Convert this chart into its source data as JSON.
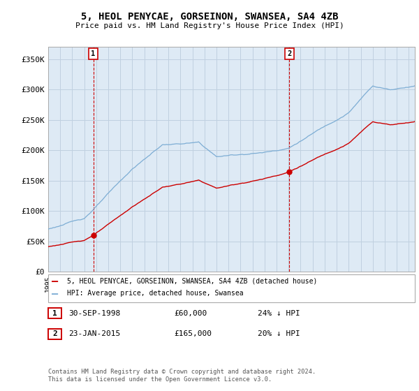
{
  "title": "5, HEOL PENYCAE, GORSEINON, SWANSEA, SA4 4ZB",
  "subtitle": "Price paid vs. HM Land Registry's House Price Index (HPI)",
  "ylabel_ticks": [
    "£0",
    "£50K",
    "£100K",
    "£150K",
    "£200K",
    "£250K",
    "£300K",
    "£350K"
  ],
  "ytick_values": [
    0,
    50000,
    100000,
    150000,
    200000,
    250000,
    300000,
    350000
  ],
  "ylim": [
    0,
    370000
  ],
  "sale1_date": "30-SEP-1998",
  "sale1_price": 60000,
  "sale1_pct": "24% ↓ HPI",
  "sale1_year": 1998.75,
  "sale2_date": "23-JAN-2015",
  "sale2_price": 165000,
  "sale2_pct": "20% ↓ HPI",
  "sale2_year": 2015.07,
  "legend_line1": "5, HEOL PENYCAE, GORSEINON, SWANSEA, SA4 4ZB (detached house)",
  "legend_line2": "HPI: Average price, detached house, Swansea",
  "footnote": "Contains HM Land Registry data © Crown copyright and database right 2024.\nThis data is licensed under the Open Government Licence v3.0.",
  "house_color": "#cc0000",
  "hpi_color": "#7dadd4",
  "plot_bg_color": "#deeaf5",
  "background_color": "#ffffff",
  "grid_color": "#c0d0e0"
}
